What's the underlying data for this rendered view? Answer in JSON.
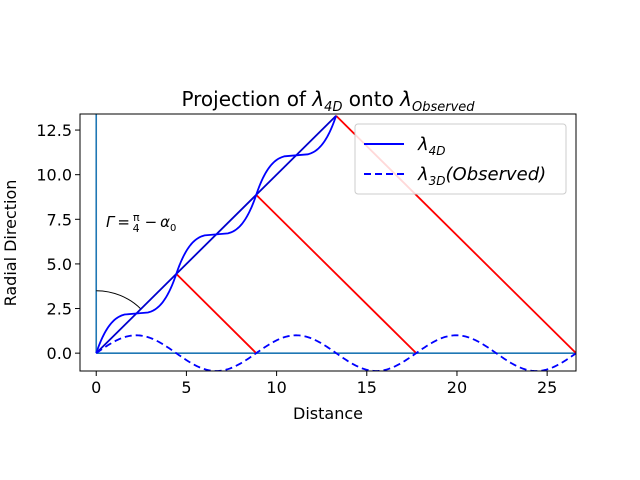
{
  "chart_data": {
    "type": "line",
    "title": {
      "main": "Projection of ",
      "sym1": "λ",
      "sub1": "4D",
      "mid": " onto ",
      "sym2": "λ",
      "sub2": "Observed"
    },
    "xlabel": "Distance",
    "ylabel": "Radial Direction",
    "xlim": [
      -0.9,
      26.6
    ],
    "ylim": [
      -1.0,
      13.4
    ],
    "xticks": [
      0,
      5,
      10,
      15,
      20,
      25
    ],
    "yticks": [
      0.0,
      2.5,
      5.0,
      7.5,
      10.0,
      12.5
    ],
    "xtick_labels": [
      "0",
      "5",
      "10",
      "15",
      "20",
      "25"
    ],
    "ytick_labels": [
      "0.0",
      "2.5",
      "5.0",
      "7.5",
      "10.0",
      "12.5"
    ],
    "grid": false,
    "legend_position": "top-right",
    "legend": [
      {
        "sym": "λ",
        "sub": "4D",
        "rest": "",
        "style": "solid",
        "color": "#0000ff"
      },
      {
        "sym": "λ",
        "sub": "3D",
        "rest": "(Observed)",
        "style": "dashed",
        "color": "#0000ff"
      }
    ],
    "annotation": {
      "text": "Γ = π/4 − α",
      "gamma": "Γ",
      "eq": "=",
      "frac_num": "π",
      "frac_den": "4",
      "minus": "−",
      "alpha": "α",
      "alpha_sub": "0"
    },
    "diagonal": {
      "x": [
        0,
        13.3
      ],
      "y": [
        0,
        13.3
      ],
      "color": "#0000cd"
    },
    "wave_4d": {
      "color": "#0000ff",
      "steps": [
        {
          "x": 0.0,
          "y": 0.0
        },
        {
          "x": 4.44,
          "y": 4.44
        },
        {
          "x": 8.87,
          "y": 8.87
        },
        {
          "x": 13.3,
          "y": 13.3
        }
      ],
      "plateaus": [
        2.22,
        6.65,
        11.09
      ]
    },
    "wave_3d": {
      "color": "#0000ff",
      "style": "dashed",
      "amplitude": 1.0,
      "period": 8.87,
      "x_range": [
        0,
        26.6
      ]
    },
    "projection_lines": {
      "color": "#ff0000",
      "segments": [
        {
          "from": [
            4.44,
            4.44
          ],
          "to": [
            8.87,
            0.0
          ]
        },
        {
          "from": [
            8.87,
            8.87
          ],
          "to": [
            17.74,
            0.0
          ]
        },
        {
          "from": [
            13.3,
            13.3
          ],
          "to": [
            26.6,
            0.0
          ]
        }
      ]
    },
    "axes_lines": {
      "color": "#1f77b4",
      "horizontal": {
        "y": 0,
        "x": [
          0,
          26.6
        ]
      },
      "vertical": {
        "x": 0,
        "y": [
          0,
          13.4
        ]
      }
    },
    "arc": {
      "color": "#000000",
      "radius": 3.5,
      "from_deg": 90,
      "to_deg": 45
    }
  }
}
